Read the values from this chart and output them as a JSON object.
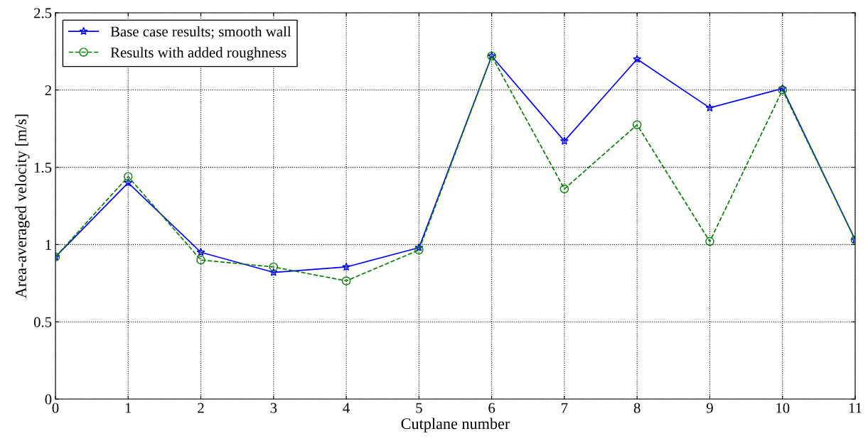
{
  "chart_data": {
    "type": "line",
    "xlabel": "Cutplane number",
    "ylabel": "Area-averaged velocity [m/s]",
    "x": [
      0,
      1,
      2,
      3,
      4,
      5,
      6,
      7,
      8,
      9,
      10,
      11
    ],
    "series": [
      {
        "name": "Base case results; smooth wall",
        "color": "#0000ff",
        "marker": "star",
        "line_style": "solid",
        "values": [
          0.92,
          1.4,
          0.95,
          0.82,
          0.855,
          0.98,
          2.22,
          1.67,
          2.2,
          1.885,
          2.01,
          1.03
        ]
      },
      {
        "name": "Results with added roughness",
        "color": "#008000",
        "marker": "circle",
        "line_style": "dashed",
        "values": [
          0.92,
          1.44,
          0.9,
          0.855,
          0.765,
          0.965,
          2.22,
          1.36,
          1.775,
          1.02,
          2.0,
          1.03
        ]
      }
    ],
    "xlim": [
      0,
      11
    ],
    "xticks": [
      0,
      1,
      2,
      3,
      4,
      5,
      6,
      7,
      8,
      9,
      10,
      11
    ],
    "ylim": [
      0,
      2.5
    ],
    "yticks": [
      0,
      0.5,
      1,
      1.5,
      2,
      2.5
    ],
    "grid": true,
    "legend": "top left"
  }
}
